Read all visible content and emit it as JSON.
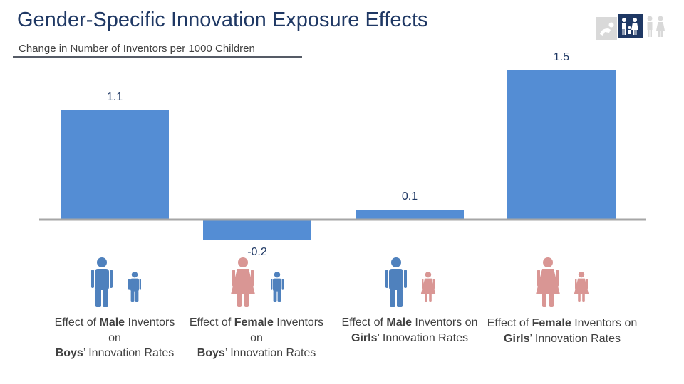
{
  "header": {
    "title": "Gender-Specific Innovation Exposure Effects",
    "subtitle": "Change in Number of Inventors per 1000 Children"
  },
  "colors": {
    "bar": "#548dd4",
    "baseline": "#a6a6a6",
    "male_icon": "#4f81bd",
    "female_icon": "#d99694",
    "label": "#404040",
    "value_label": "#1f3864"
  },
  "chart_data": {
    "type": "bar",
    "title": "Gender-Specific Innovation Exposure Effects",
    "ylabel": "Change in Number of Inventors per 1000 Children",
    "categories": [
      "Effect of Male Inventors on Boys’ Innovation Rates",
      "Effect of Female Inventors on Boys’ Innovation Rates",
      "Effect of Male Inventors on Girls’ Innovation Rates",
      "Effect of Female Inventors on Girls’ Innovation Rates"
    ],
    "values": [
      1.1,
      -0.2,
      0.1,
      1.5
    ],
    "value_labels": [
      "1.1",
      "-0.2",
      "0.1",
      "1.5"
    ],
    "ylim": [
      -0.2,
      1.5
    ],
    "grid": false,
    "legend": "none"
  },
  "captions": [
    {
      "p1": "Effect of ",
      "b1": "Male",
      "p2": " Inventors on",
      "b2": "Boys",
      "p3": "’ Innovation Rates"
    },
    {
      "p1": "Effect of ",
      "b1": "Female",
      "p2": " Inventors on",
      "b2": "Boys",
      "p3": "’ Innovation Rates"
    },
    {
      "p1": "Effect of ",
      "b1": "Male",
      "p2": " Inventors on",
      "b2": "Girls",
      "p3": "’ Innovation Rates"
    },
    {
      "p1": "Effect of ",
      "b1": "Female",
      "p2": " Inventors on",
      "b2": "Girls",
      "p3": "’ Innovation Rates"
    }
  ],
  "icons": [
    {
      "adult": "male-adult-icon",
      "child": "boy-icon",
      "adult_gender": "male",
      "child_gender": "male"
    },
    {
      "adult": "female-adult-icon",
      "child": "boy-icon",
      "adult_gender": "female",
      "child_gender": "male"
    },
    {
      "adult": "male-adult-icon",
      "child": "girl-icon",
      "adult_gender": "male",
      "child_gender": "female"
    },
    {
      "adult": "female-adult-icon",
      "child": "girl-icon",
      "adult_gender": "female",
      "child_gender": "female"
    }
  ],
  "top_icons": [
    "baby-crawling-icon",
    "family-icon",
    "parent-child-icon"
  ]
}
